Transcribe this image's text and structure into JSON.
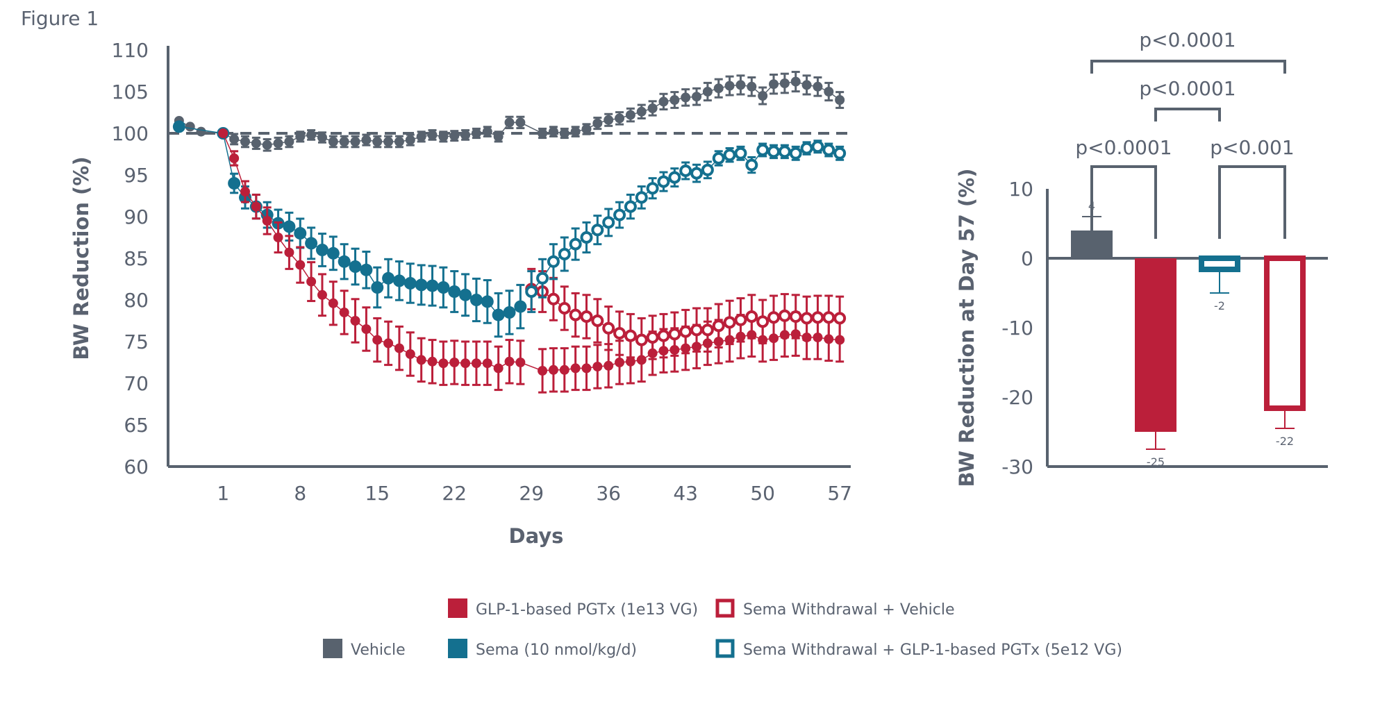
{
  "figure_label": "Figure 1",
  "colors": {
    "vehicle": "#58626e",
    "pgtx": "#bb1f3a",
    "sema": "#14708f",
    "axis": "#58626e",
    "text": "#5a6270"
  },
  "chart_data": [
    {
      "type": "line",
      "title": "",
      "xlabel": "Days",
      "ylabel": "BW Reduction (%)",
      "xticks": [
        "1",
        "8",
        "15",
        "22",
        "29",
        "36",
        "43",
        "50",
        "57"
      ],
      "xlim": [
        -4,
        58
      ],
      "ylim": [
        60,
        110
      ],
      "yticks": [
        "60",
        "65",
        "70",
        "75",
        "80",
        "85",
        "90",
        "95",
        "100",
        "105",
        "110"
      ],
      "reference_line": 100,
      "series": [
        {
          "name": "Vehicle",
          "color_key": "vehicle",
          "marker": "filled",
          "x": [
            -3,
            -2,
            -1,
            1,
            2,
            3,
            4,
            5,
            6,
            7,
            8,
            9,
            10,
            11,
            12,
            13,
            14,
            15,
            16,
            17,
            18,
            19,
            20,
            21,
            22,
            23,
            24,
            25,
            26,
            27,
            28,
            30,
            31,
            32,
            33,
            34,
            35,
            36,
            37,
            38,
            39,
            40,
            41,
            42,
            43,
            44,
            45,
            46,
            47,
            48,
            49,
            50,
            51,
            52,
            53,
            54,
            55,
            56,
            57
          ],
          "y": [
            101.5,
            100.8,
            100.2,
            100,
            99.3,
            99,
            98.8,
            98.6,
            98.8,
            99,
            99.6,
            99.8,
            99.5,
            99,
            99,
            99,
            99.2,
            99,
            99,
            99,
            99.2,
            99.6,
            99.8,
            99.6,
            99.7,
            99.8,
            100,
            100.2,
            99.6,
            101.3,
            101.3,
            100,
            100.2,
            100,
            100.2,
            100.5,
            101.2,
            101.6,
            101.8,
            102.2,
            102.6,
            103,
            103.8,
            104,
            104.3,
            104.4,
            105,
            105.4,
            105.7,
            105.8,
            105.6,
            104.5,
            105.9,
            106,
            106.2,
            105.8,
            105.6,
            105,
            104
          ]
        },
        {
          "name": "Sema (10 nmol/kg/d)",
          "color_key": "sema",
          "marker": "filled",
          "x": [
            -3,
            1,
            2,
            3,
            4,
            5,
            6,
            7,
            8,
            9,
            10,
            11,
            12,
            13,
            14,
            15,
            16,
            17,
            18,
            19,
            20,
            21,
            22,
            23,
            24,
            25,
            26,
            27,
            28
          ],
          "y": [
            100.8,
            100,
            94,
            92.3,
            91.2,
            90.2,
            89.2,
            88.8,
            88,
            86.8,
            86,
            85.6,
            84.6,
            84,
            83.6,
            81.5,
            82.6,
            82.3,
            82,
            81.8,
            81.7,
            81.5,
            81,
            80.6,
            80,
            79.8,
            78.2,
            78.5,
            79.2
          ]
        },
        {
          "name": "GLP-1-based PGTx (1e13 VG)",
          "color_key": "pgtx",
          "marker": "filled",
          "x": [
            1,
            2,
            3,
            4,
            5,
            6,
            7,
            8,
            9,
            10,
            11,
            12,
            13,
            14,
            15,
            16,
            17,
            18,
            19,
            20,
            21,
            22,
            23,
            24,
            25,
            26,
            27,
            28,
            30,
            31,
            32,
            33,
            34,
            35,
            36,
            37,
            38,
            39,
            40,
            41,
            42,
            43,
            44,
            45,
            46,
            47,
            48,
            49,
            50,
            51,
            52,
            53,
            54,
            55,
            56,
            57
          ],
          "y": [
            100,
            97,
            93,
            91.2,
            89.5,
            87.5,
            85.7,
            84.2,
            82.2,
            80.6,
            79.6,
            78.5,
            77.5,
            76.5,
            75.2,
            74.8,
            74.2,
            73.5,
            72.8,
            72.6,
            72.4,
            72.5,
            72.4,
            72.4,
            72.4,
            71.8,
            72.6,
            72.5,
            71.5,
            71.6,
            71.6,
            71.8,
            71.8,
            72,
            72.1,
            72.5,
            72.6,
            72.8,
            73.6,
            73.9,
            74,
            74.2,
            74.4,
            74.8,
            75,
            75.2,
            75.6,
            75.8,
            75.2,
            75.4,
            75.8,
            75.9,
            75.5,
            75.5,
            75.3,
            75.2
          ]
        },
        {
          "name": "Sema Withdrawal + Vehicle",
          "color_key": "pgtx",
          "marker": "open",
          "x": [
            29,
            30,
            31,
            32,
            33,
            34,
            35,
            36,
            37,
            38,
            39,
            40,
            41,
            42,
            43,
            44,
            45,
            46,
            47,
            48,
            49,
            50,
            51,
            52,
            53,
            54,
            55,
            56,
            57
          ],
          "y": [
            81.3,
            81,
            80.1,
            79,
            78.2,
            78,
            77.5,
            76.6,
            76,
            75.7,
            75.2,
            75.5,
            75.7,
            75.9,
            76.2,
            76.4,
            76.4,
            76.9,
            77.3,
            77.6,
            78,
            77.4,
            77.9,
            78.1,
            78,
            77.8,
            77.9,
            77.9,
            77.8
          ]
        },
        {
          "name": "Sema Withdrawal + GLP-1-based PGTx (5e12 VG)",
          "color_key": "sema",
          "marker": "open",
          "x": [
            29,
            30,
            31,
            32,
            33,
            34,
            35,
            36,
            37,
            38,
            39,
            40,
            41,
            42,
            43,
            44,
            45,
            46,
            47,
            48,
            49,
            50,
            51,
            52,
            53,
            54,
            55,
            56,
            57
          ],
          "y": [
            81,
            82.6,
            84.6,
            85.5,
            86.7,
            87.5,
            88.4,
            89.3,
            90.2,
            91.2,
            92.3,
            93.4,
            94.2,
            94.7,
            95.5,
            95.2,
            95.6,
            97,
            97.4,
            97.6,
            96.2,
            98,
            97.8,
            97.8,
            97.6,
            98.2,
            98.4,
            98,
            97.6
          ]
        }
      ]
    },
    {
      "type": "bar",
      "title": "",
      "ylabel": "BW Reduction at Day 57 (%)",
      "ylim": [
        -30,
        10
      ],
      "yticks": [
        "10",
        "0",
        "-10",
        "-20",
        "-30"
      ],
      "bars": [
        {
          "label": "4",
          "value": 4,
          "err": 2,
          "color_key": "vehicle",
          "style": "filled"
        },
        {
          "label": "-25",
          "value": -25,
          "err": 2.5,
          "color_key": "pgtx",
          "style": "filled"
        },
        {
          "label": "-2",
          "value": -2,
          "err": 3,
          "color_key": "sema",
          "style": "open"
        },
        {
          "label": "-22",
          "value": -22,
          "err": 2.5,
          "color_key": "pgtx",
          "style": "open"
        }
      ],
      "comparisons": [
        {
          "from": 0,
          "to": 3,
          "text": "p<0.0001"
        },
        {
          "from": 1,
          "to": 2,
          "text": "p<0.0001"
        },
        {
          "from": 0,
          "to": 1,
          "text": "p<0.0001"
        },
        {
          "from": 2,
          "to": 3,
          "text": "p<0.001"
        }
      ]
    }
  ],
  "legend": {
    "items": [
      {
        "label": "Vehicle",
        "color_key": "vehicle",
        "style": "filled"
      },
      {
        "label": "GLP-1-based PGTx (1e13 VG)",
        "color_key": "pgtx",
        "style": "filled"
      },
      {
        "label": "Sema (10 nmol/kg/d)",
        "color_key": "sema",
        "style": "filled"
      },
      {
        "label": "Sema Withdrawal + Vehicle",
        "color_key": "pgtx",
        "style": "open"
      },
      {
        "label": "Sema Withdrawal + GLP-1-based PGTx (5e12 VG)",
        "color_key": "sema",
        "style": "open"
      }
    ]
  }
}
